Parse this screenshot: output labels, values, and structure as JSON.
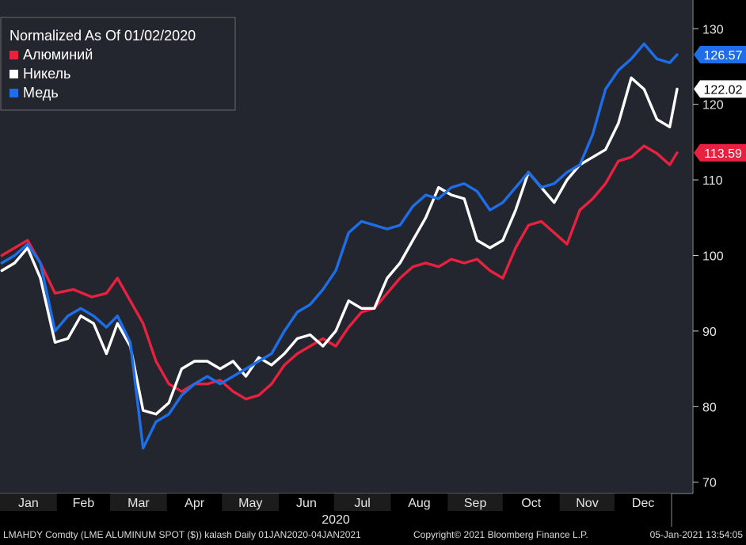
{
  "chart_data": {
    "type": "line",
    "legend_title": "Normalized As Of 01/02/2020",
    "legend_position": "top-left",
    "grid": false,
    "x_axis": {
      "months": [
        "Jan",
        "Feb",
        "Mar",
        "Apr",
        "May",
        "Jun",
        "Jul",
        "Aug",
        "Sep",
        "Oct",
        "Nov",
        "Dec"
      ],
      "year": "2020",
      "range": [
        "2020-01-01",
        "2021-01-04"
      ]
    },
    "y_axis": {
      "ticks": [
        70,
        80,
        90,
        100,
        110,
        120,
        130
      ],
      "range": [
        68.5,
        133.8
      ],
      "position": "right"
    },
    "series": [
      {
        "name": "Алюминий",
        "color": "#e8213f",
        "last_value_label": "113.59",
        "points": [
          [
            "2020-01-02",
            100
          ],
          [
            "2020-01-09",
            101
          ],
          [
            "2020-01-16",
            102
          ],
          [
            "2020-01-23",
            99
          ],
          [
            "2020-01-31",
            95
          ],
          [
            "2020-02-10",
            95.5
          ],
          [
            "2020-02-20",
            94.5
          ],
          [
            "2020-02-28",
            95
          ],
          [
            "2020-03-05",
            97
          ],
          [
            "2020-03-12",
            94
          ],
          [
            "2020-03-19",
            91
          ],
          [
            "2020-03-26",
            86
          ],
          [
            "2020-04-02",
            83
          ],
          [
            "2020-04-09",
            82
          ],
          [
            "2020-04-16",
            83
          ],
          [
            "2020-04-23",
            83
          ],
          [
            "2020-04-30",
            83.5
          ],
          [
            "2020-05-07",
            82
          ],
          [
            "2020-05-14",
            81
          ],
          [
            "2020-05-21",
            81.5
          ],
          [
            "2020-05-28",
            83
          ],
          [
            "2020-06-04",
            85.5
          ],
          [
            "2020-06-11",
            87
          ],
          [
            "2020-06-18",
            88
          ],
          [
            "2020-06-25",
            89
          ],
          [
            "2020-07-02",
            88
          ],
          [
            "2020-07-09",
            90.5
          ],
          [
            "2020-07-16",
            92.5
          ],
          [
            "2020-07-23",
            93
          ],
          [
            "2020-07-30",
            95
          ],
          [
            "2020-08-06",
            97
          ],
          [
            "2020-08-13",
            98.5
          ],
          [
            "2020-08-20",
            99
          ],
          [
            "2020-08-27",
            98.5
          ],
          [
            "2020-09-03",
            99.5
          ],
          [
            "2020-09-10",
            99
          ],
          [
            "2020-09-17",
            99.5
          ],
          [
            "2020-09-24",
            98
          ],
          [
            "2020-10-01",
            97
          ],
          [
            "2020-10-08",
            101
          ],
          [
            "2020-10-15",
            104
          ],
          [
            "2020-10-22",
            104.5
          ],
          [
            "2020-10-29",
            103
          ],
          [
            "2020-11-05",
            101.5
          ],
          [
            "2020-11-12",
            106
          ],
          [
            "2020-11-19",
            107.5
          ],
          [
            "2020-11-26",
            109.5
          ],
          [
            "2020-12-03",
            112.5
          ],
          [
            "2020-12-10",
            113
          ],
          [
            "2020-12-17",
            114.5
          ],
          [
            "2020-12-24",
            113.5
          ],
          [
            "2020-12-31",
            112
          ],
          [
            "2021-01-04",
            113.59
          ]
        ]
      },
      {
        "name": "Никель",
        "color": "#ffffff",
        "last_value_label": "122.02",
        "points": [
          [
            "2020-01-02",
            98
          ],
          [
            "2020-01-09",
            99
          ],
          [
            "2020-01-16",
            101
          ],
          [
            "2020-01-23",
            97
          ],
          [
            "2020-01-31",
            88.5
          ],
          [
            "2020-02-07",
            89
          ],
          [
            "2020-02-14",
            92
          ],
          [
            "2020-02-21",
            91
          ],
          [
            "2020-02-28",
            87
          ],
          [
            "2020-03-05",
            91
          ],
          [
            "2020-03-12",
            88
          ],
          [
            "2020-03-19",
            79.5
          ],
          [
            "2020-03-26",
            79
          ],
          [
            "2020-04-02",
            80.5
          ],
          [
            "2020-04-09",
            85
          ],
          [
            "2020-04-16",
            86
          ],
          [
            "2020-04-23",
            86
          ],
          [
            "2020-04-30",
            85
          ],
          [
            "2020-05-07",
            86
          ],
          [
            "2020-05-14",
            84
          ],
          [
            "2020-05-21",
            86.5
          ],
          [
            "2020-05-28",
            85.5
          ],
          [
            "2020-06-04",
            87
          ],
          [
            "2020-06-11",
            89
          ],
          [
            "2020-06-18",
            89.5
          ],
          [
            "2020-06-25",
            88
          ],
          [
            "2020-07-02",
            90
          ],
          [
            "2020-07-09",
            94
          ],
          [
            "2020-07-16",
            93
          ],
          [
            "2020-07-23",
            93
          ],
          [
            "2020-07-30",
            97
          ],
          [
            "2020-08-06",
            99
          ],
          [
            "2020-08-13",
            102
          ],
          [
            "2020-08-20",
            105
          ],
          [
            "2020-08-27",
            109
          ],
          [
            "2020-09-03",
            108
          ],
          [
            "2020-09-10",
            107.5
          ],
          [
            "2020-09-17",
            102
          ],
          [
            "2020-09-24",
            101
          ],
          [
            "2020-10-01",
            102
          ],
          [
            "2020-10-08",
            106
          ],
          [
            "2020-10-15",
            111
          ],
          [
            "2020-10-22",
            109
          ],
          [
            "2020-10-29",
            107
          ],
          [
            "2020-11-05",
            110
          ],
          [
            "2020-11-12",
            112
          ],
          [
            "2020-11-19",
            113
          ],
          [
            "2020-11-26",
            114
          ],
          [
            "2020-12-03",
            117.5
          ],
          [
            "2020-12-10",
            123.5
          ],
          [
            "2020-12-17",
            122
          ],
          [
            "2020-12-24",
            118
          ],
          [
            "2020-12-31",
            117
          ],
          [
            "2021-01-04",
            122.02
          ]
        ]
      },
      {
        "name": "Медь",
        "color": "#1d6ee8",
        "last_value_label": "126.57",
        "points": [
          [
            "2020-01-02",
            99
          ],
          [
            "2020-01-09",
            100
          ],
          [
            "2020-01-16",
            101.5
          ],
          [
            "2020-01-23",
            99
          ],
          [
            "2020-01-31",
            90
          ],
          [
            "2020-02-07",
            92
          ],
          [
            "2020-02-14",
            93
          ],
          [
            "2020-02-21",
            92
          ],
          [
            "2020-02-28",
            90.5
          ],
          [
            "2020-03-05",
            92
          ],
          [
            "2020-03-12",
            88.5
          ],
          [
            "2020-03-19",
            74.5
          ],
          [
            "2020-03-26",
            78
          ],
          [
            "2020-04-02",
            79
          ],
          [
            "2020-04-09",
            81.5
          ],
          [
            "2020-04-16",
            83
          ],
          [
            "2020-04-23",
            84
          ],
          [
            "2020-04-30",
            83
          ],
          [
            "2020-05-07",
            84
          ],
          [
            "2020-05-14",
            85
          ],
          [
            "2020-05-21",
            86
          ],
          [
            "2020-05-28",
            87
          ],
          [
            "2020-06-04",
            90
          ],
          [
            "2020-06-11",
            92.5
          ],
          [
            "2020-06-18",
            93.5
          ],
          [
            "2020-06-25",
            95.5
          ],
          [
            "2020-07-02",
            98
          ],
          [
            "2020-07-09",
            103
          ],
          [
            "2020-07-16",
            104.5
          ],
          [
            "2020-07-23",
            104
          ],
          [
            "2020-07-30",
            103.5
          ],
          [
            "2020-08-06",
            104
          ],
          [
            "2020-08-13",
            106.5
          ],
          [
            "2020-08-20",
            108
          ],
          [
            "2020-08-27",
            107.5
          ],
          [
            "2020-09-03",
            109
          ],
          [
            "2020-09-10",
            109.5
          ],
          [
            "2020-09-17",
            108.5
          ],
          [
            "2020-09-24",
            106
          ],
          [
            "2020-10-01",
            107
          ],
          [
            "2020-10-08",
            109
          ],
          [
            "2020-10-15",
            111
          ],
          [
            "2020-10-22",
            109
          ],
          [
            "2020-10-29",
            109.5
          ],
          [
            "2020-11-05",
            111
          ],
          [
            "2020-11-12",
            112
          ],
          [
            "2020-11-19",
            116
          ],
          [
            "2020-11-26",
            122
          ],
          [
            "2020-12-03",
            124.5
          ],
          [
            "2020-12-10",
            126
          ],
          [
            "2020-12-17",
            128
          ],
          [
            "2020-12-24",
            126
          ],
          [
            "2020-12-31",
            125.5
          ],
          [
            "2021-01-04",
            126.57
          ]
        ]
      }
    ]
  },
  "footer": {
    "left": "LMAHDY Comdty (LME ALUMINUM SPOT ($)) kalash  Daily 01JAN2020-04JAN2021",
    "center": "Copyright© 2021 Bloomberg Finance L.P.",
    "right": "05-Jan-2021 13:54:05"
  }
}
